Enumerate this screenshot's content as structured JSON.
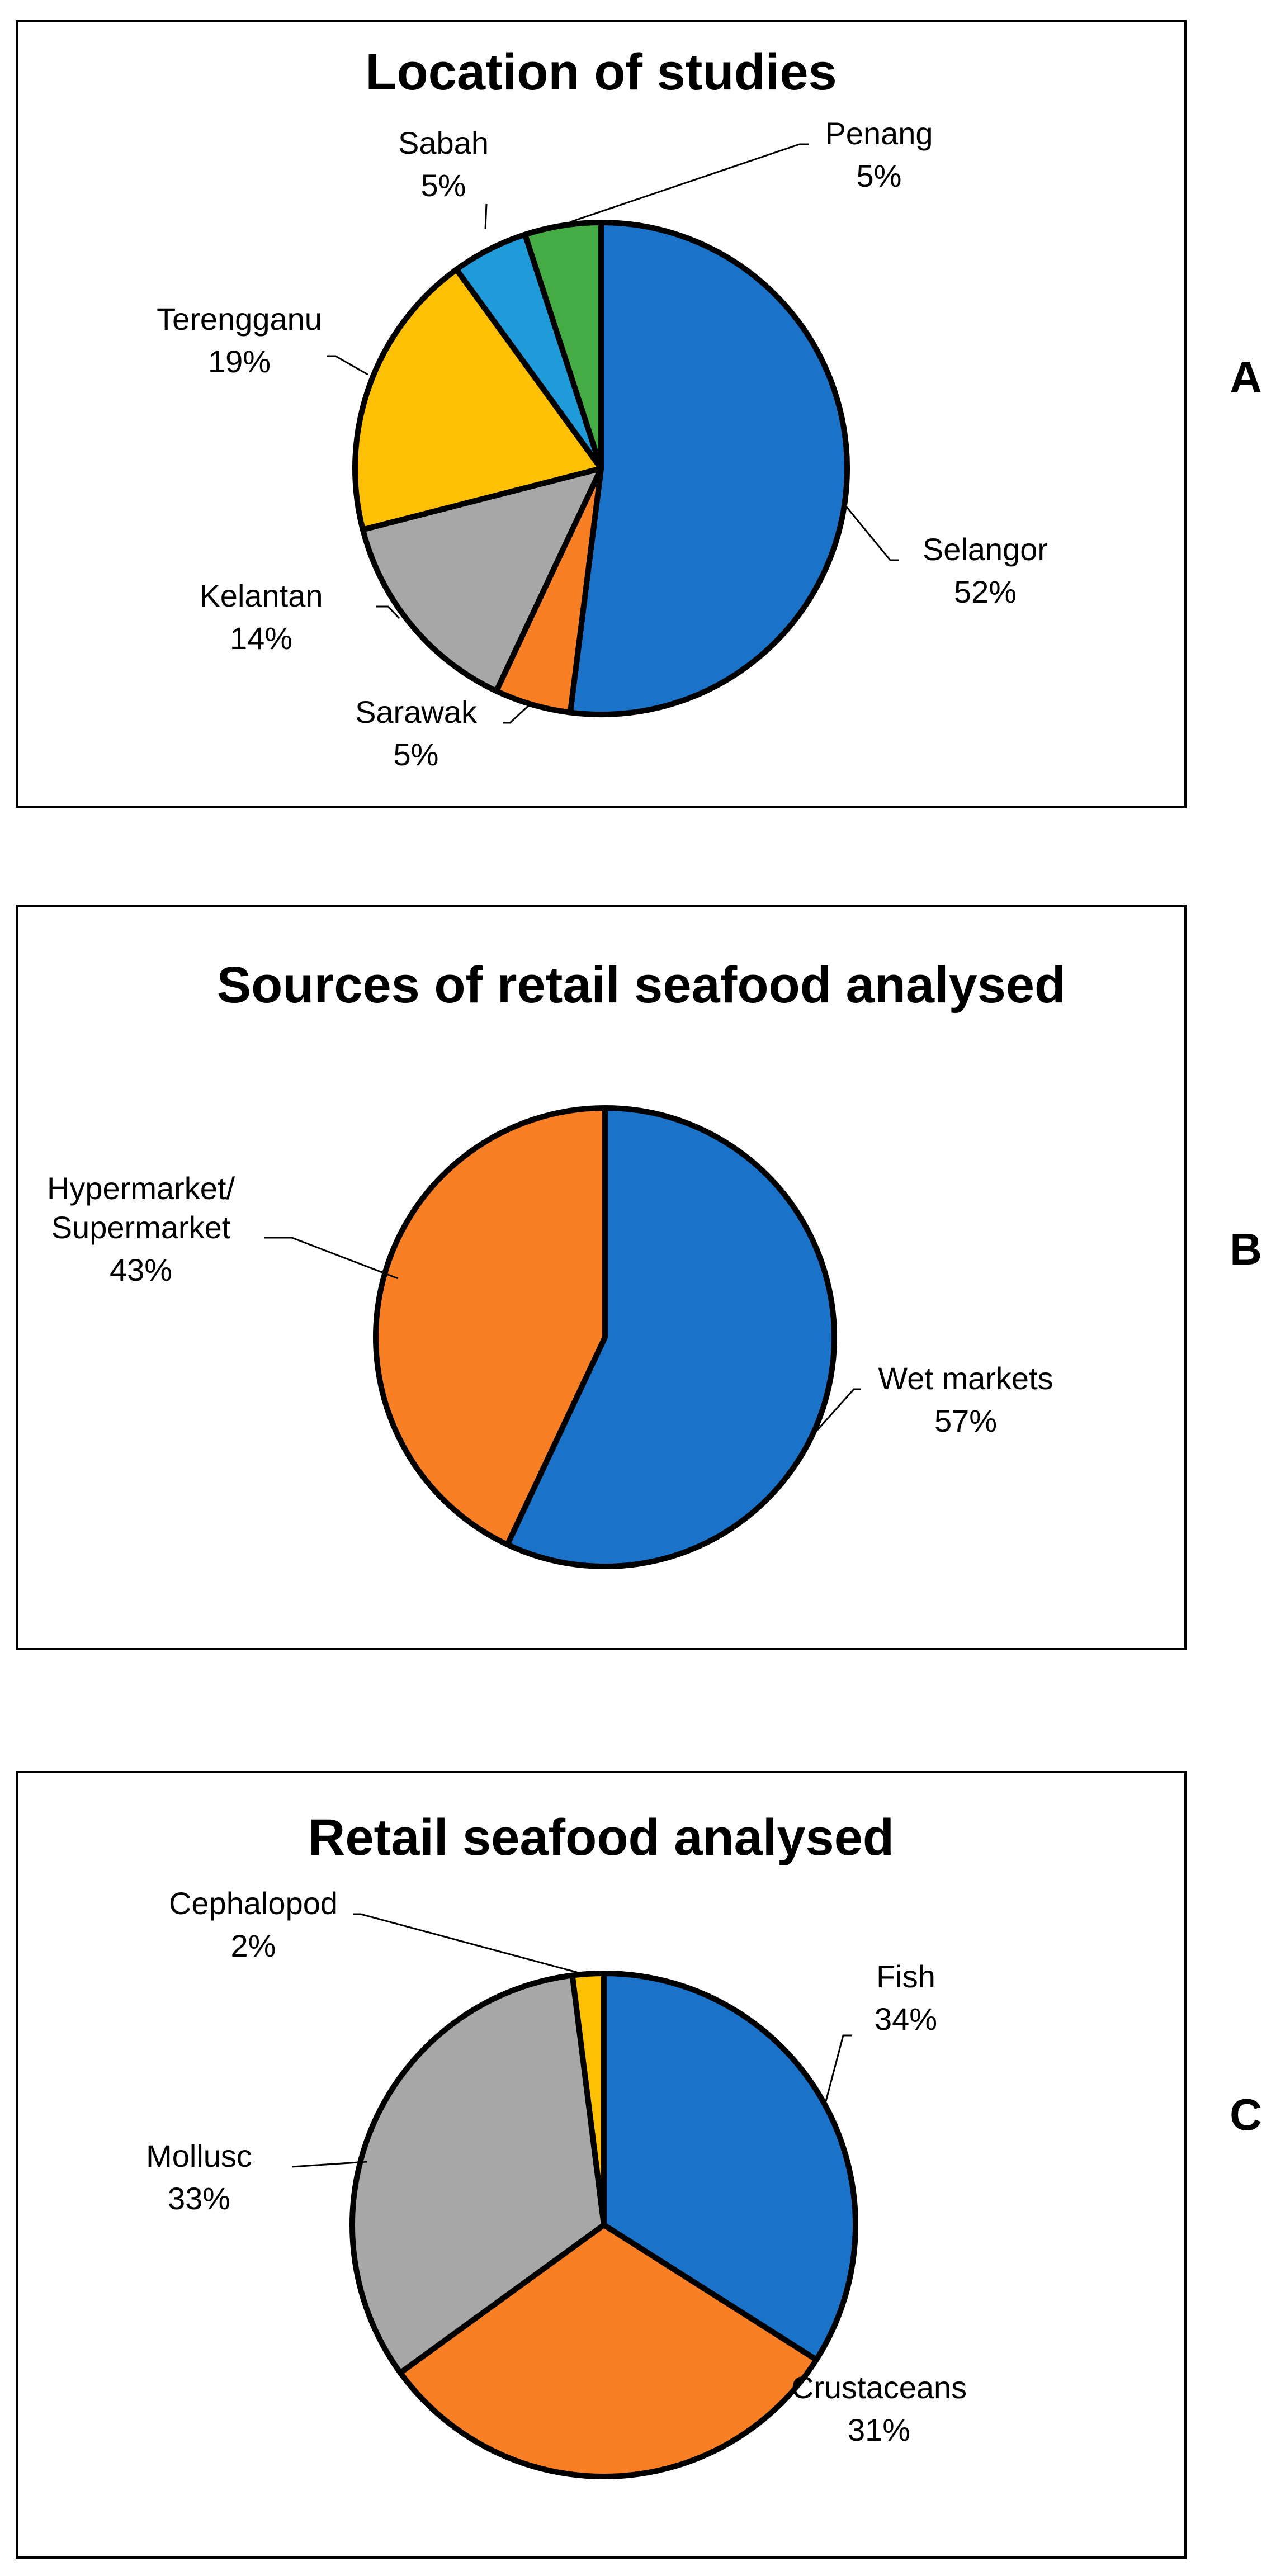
{
  "chart_data": [
    {
      "type": "pie",
      "title": "Location of studies",
      "panel": "A",
      "slices": [
        {
          "name": "Selangor",
          "value": 52,
          "label": "52%",
          "color": "#1a73c9"
        },
        {
          "name": "Sarawak",
          "value": 5,
          "label": "5%",
          "color": "#f97f25"
        },
        {
          "name": "Kelantan",
          "value": 14,
          "label": "14%",
          "color": "#a7a7a7"
        },
        {
          "name": "Terengganu",
          "value": 19,
          "label": "19%",
          "color": "#fec004"
        },
        {
          "name": "Sabah",
          "value": 5,
          "label": "5%",
          "color": "#1f9bda"
        },
        {
          "name": "Penang",
          "value": 5,
          "label": "5%",
          "color": "#44ab45"
        }
      ]
    },
    {
      "type": "pie",
      "title": "Sources of retail seafood analysed",
      "panel": "B",
      "slices": [
        {
          "name": "Wet markets",
          "value": 57,
          "label": "57%",
          "color": "#1a73c9"
        },
        {
          "name": "Hypermarket/ Supermarket",
          "value": 43,
          "label": "43%",
          "color": "#f97f25"
        }
      ]
    },
    {
      "type": "pie",
      "title": "Retail seafood analysed",
      "panel": "C",
      "slices": [
        {
          "name": "Fish",
          "value": 34,
          "label": "34%",
          "color": "#1a73c9"
        },
        {
          "name": "Crustaceans",
          "value": 31,
          "label": "31%",
          "color": "#f97f25"
        },
        {
          "name": "Mollusc",
          "value": 33,
          "label": "33%",
          "color": "#a7a7a7"
        },
        {
          "name": "Cephalopod",
          "value": 2,
          "label": "2%",
          "color": "#fec004"
        }
      ]
    }
  ]
}
